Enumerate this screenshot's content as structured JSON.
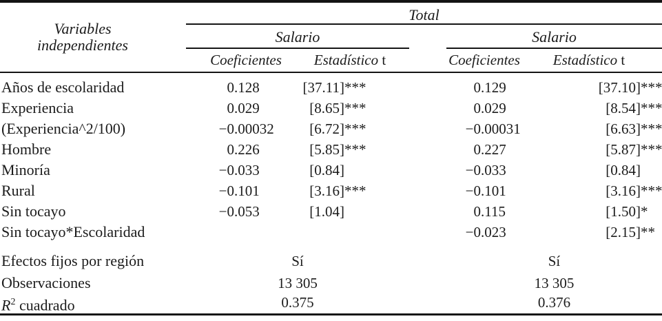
{
  "header": {
    "stub_line1": "Variables",
    "stub_line2": "independientes",
    "span_title": "Total",
    "groups": [
      {
        "title": "Salario",
        "coef": "Coeficientes",
        "tstat": "Estadístico",
        "tstat_suffix": "t"
      },
      {
        "title": "Salario",
        "coef": "Coeficientes",
        "tstat": "Estadístico",
        "tstat_suffix": "t"
      }
    ]
  },
  "rows": [
    {
      "label": "Años de escolaridad",
      "c1": "0.128",
      "t1": "[37.11]***",
      "c2": "0.129",
      "t2": "[37.10]***"
    },
    {
      "label": "Experiencia",
      "c1": "0.029",
      "t1": "[8.65]***",
      "c2": "0.029",
      "t2": "[8.54]***"
    },
    {
      "label": "(Experiencia^2/100)",
      "c1": "−0.00032",
      "t1": "[6.72]***",
      "c2": "−0.00031",
      "t2": "[6.63]***"
    },
    {
      "label": "Hombre",
      "c1": "0.226",
      "t1": "[5.85]***",
      "c2": "0.227",
      "t2": "[5.87]***"
    },
    {
      "label": "Minoría",
      "c1": "−0.033",
      "t1": "[0.84]",
      "c2": "−0.033",
      "t2": "[0.84]"
    },
    {
      "label": "Rural",
      "c1": "−0.101",
      "t1": "[3.16]***",
      "c2": "−0.101",
      "t2": "[3.16]***"
    },
    {
      "label": "Sin tocayo",
      "c1": "−0.053",
      "t1": "[1.04]",
      "c2": "0.115",
      "t2": "[1.50]*"
    },
    {
      "label": "Sin tocayo*Escolaridad",
      "c1": "",
      "t1": "",
      "c2": "−0.023",
      "t2": "[2.15]**"
    }
  ],
  "summary": [
    {
      "label": "Efectos fijos por región",
      "v1": "Sí",
      "v2": "Sí"
    },
    {
      "label": "Observaciones",
      "v1": "13 305",
      "v2": "13 305"
    },
    {
      "label_base": "R",
      "label_sup": "2",
      "label_rest": " cuadrado",
      "v1": "0.375",
      "v2": "0.376"
    }
  ]
}
